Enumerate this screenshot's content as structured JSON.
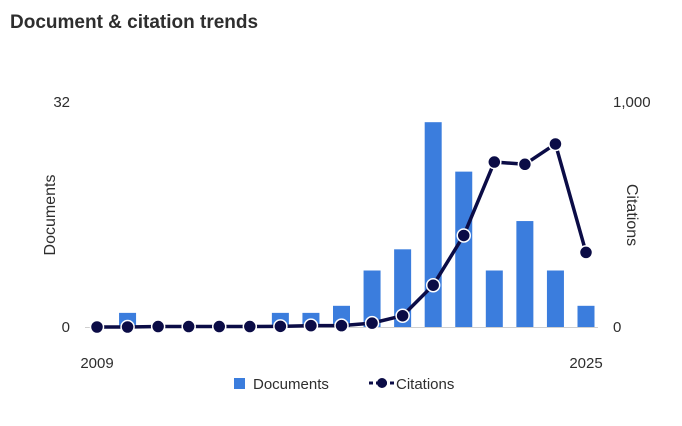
{
  "page_title": "Document & citation trends",
  "chart_data": {
    "type": "bar",
    "categories": [
      "2009",
      "2010",
      "2011",
      "2012",
      "2013",
      "2014",
      "2015",
      "2016",
      "2017",
      "2018",
      "2019",
      "2020",
      "2021",
      "2022",
      "2023",
      "2024",
      "2025"
    ],
    "series": [
      {
        "name": "Documents",
        "type": "bar",
        "axis": "left",
        "color": "#3b7ddd",
        "values": [
          0,
          2,
          0,
          0,
          0,
          0,
          2,
          2,
          3,
          8,
          11,
          29,
          22,
          8,
          15,
          8,
          3
        ]
      },
      {
        "name": "Citations",
        "type": "line",
        "axis": "right",
        "color": "#0b0c46",
        "values": [
          0,
          0,
          2,
          2,
          2,
          2,
          3,
          6,
          6,
          17,
          50,
          185,
          405,
          730,
          720,
          810,
          330
        ]
      }
    ],
    "y_left": {
      "label": "Documents",
      "ylim": [
        0,
        32
      ],
      "tick_labels": [
        "0",
        "32"
      ]
    },
    "y_right": {
      "label": "Citations",
      "ylim": [
        0,
        1000
      ],
      "tick_labels": [
        "0",
        "1,000"
      ]
    },
    "x_tick_labels": [
      "2009",
      "2025"
    ],
    "legend_placement": "bottom-center",
    "grid": false
  }
}
